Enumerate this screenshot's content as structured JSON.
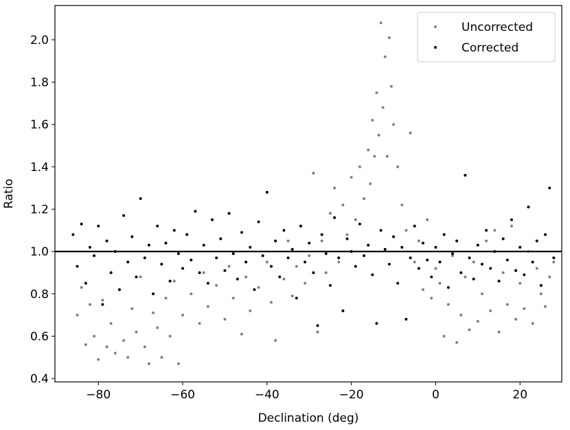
{
  "chart_data": {
    "type": "scatter",
    "xlabel": "Declination (deg)",
    "ylabel": "Ratio",
    "xlim": [
      -90.3,
      29.9
    ],
    "ylim": [
      0.384,
      2.162
    ],
    "xticks": [
      {
        "value": -80,
        "label": "−80"
      },
      {
        "value": -60,
        "label": "−60"
      },
      {
        "value": -40,
        "label": "−40"
      },
      {
        "value": -20,
        "label": "−20"
      },
      0,
      20
    ],
    "yticks": [
      0.4,
      0.6,
      0.8,
      {
        "value": 1.0,
        "label": "1.0"
      },
      1.2,
      1.4,
      1.6,
      1.8,
      {
        "value": 2.0,
        "label": "2.0"
      }
    ],
    "hline": 1,
    "legend": "upper right",
    "grid": false,
    "series": [
      {
        "name": "Uncorrected",
        "color": "#808080",
        "x": [
          -85,
          -84,
          -83,
          -82,
          -81,
          -80,
          -79,
          -78,
          -77,
          -76,
          -75,
          -74,
          -73,
          -72,
          -71,
          -70,
          -69,
          -68,
          -67,
          -66,
          -65,
          -64,
          -63,
          -62,
          -61,
          -60,
          -58,
          -56,
          -55,
          -54,
          -52,
          -50,
          -49,
          -48,
          -46,
          -45,
          -44,
          -42,
          -40,
          -39,
          -38,
          -36,
          -35,
          -34,
          -33,
          -32,
          -31,
          -30,
          -29,
          -28,
          -27,
          -26,
          -25,
          -24,
          -23,
          -22,
          -21,
          -20,
          -19,
          -18,
          -17,
          -16,
          -15.5,
          -15,
          -14.5,
          -14,
          -13.5,
          -13,
          -12.5,
          -12,
          -11.5,
          -11,
          -10.5,
          -10,
          -9,
          -8,
          -7,
          -6,
          -5,
          -4,
          -3,
          -2,
          -1,
          0,
          1,
          2,
          3,
          4,
          5,
          6,
          7,
          8,
          9,
          10,
          11,
          12,
          13,
          14,
          15,
          16,
          17,
          18,
          19,
          20,
          21,
          22,
          23,
          24,
          25,
          26,
          27,
          28
        ],
        "values": [
          0.7,
          0.83,
          0.56,
          0.75,
          0.6,
          0.49,
          0.77,
          0.55,
          0.66,
          0.52,
          0.82,
          0.58,
          0.5,
          0.73,
          0.62,
          0.88,
          0.55,
          0.47,
          0.71,
          0.64,
          0.5,
          0.78,
          0.6,
          0.86,
          0.47,
          0.7,
          0.8,
          0.66,
          0.9,
          0.74,
          0.84,
          0.68,
          0.93,
          0.78,
          0.61,
          0.88,
          0.72,
          0.83,
          0.95,
          0.76,
          0.58,
          0.87,
          1.05,
          0.79,
          0.93,
          1.12,
          0.85,
          0.98,
          1.37,
          0.62,
          1.05,
          0.9,
          1.18,
          1.3,
          0.95,
          1.22,
          1.08,
          1.35,
          1.15,
          1.4,
          1.25,
          1.48,
          1.32,
          1.62,
          1.45,
          1.75,
          1.55,
          2.08,
          1.68,
          1.92,
          1.45,
          2.01,
          1.78,
          1.6,
          1.4,
          1.22,
          1.1,
          1.56,
          0.95,
          1.05,
          0.82,
          1.15,
          0.78,
          0.92,
          0.85,
          0.6,
          0.75,
          0.98,
          0.57,
          0.7,
          0.88,
          0.63,
          0.95,
          0.67,
          0.8,
          1.05,
          0.72,
          1.1,
          0.62,
          0.9,
          0.75,
          1.12,
          0.68,
          0.85,
          0.73,
          1.0,
          0.66,
          0.92,
          0.8,
          0.74,
          0.88,
          0.95
        ]
      },
      {
        "name": "Corrected",
        "color": "#000000",
        "x": [
          -86,
          -85,
          -84,
          -83,
          -82,
          -81,
          -80,
          -79,
          -78,
          -77,
          -76,
          -75,
          -74,
          -73,
          -72,
          -71,
          -70,
          -69,
          -68,
          -67,
          -66,
          -65,
          -64,
          -63,
          -62,
          -61,
          -60,
          -59,
          -58,
          -57,
          -56,
          -55,
          -54,
          -53,
          -52,
          -51,
          -50,
          -49,
          -48,
          -47,
          -46,
          -45,
          -44,
          -43,
          -42,
          -41,
          -40,
          -39,
          -38,
          -37,
          -36,
          -35,
          -34,
          -33,
          -32,
          -31,
          -30,
          -29,
          -28,
          -27,
          -26,
          -25,
          -24,
          -23,
          -22,
          -21,
          -20,
          -19,
          -18,
          -17,
          -16,
          -15,
          -14,
          -13,
          -12,
          -11,
          -10,
          -9,
          -8,
          -7,
          -6,
          -5,
          -4,
          -3,
          -2,
          -1,
          0,
          1,
          2,
          3,
          4,
          5,
          6,
          7,
          8,
          9,
          10,
          11,
          12,
          13,
          14,
          15,
          16,
          17,
          18,
          19,
          20,
          21,
          22,
          23,
          24,
          25,
          26,
          27,
          28
        ],
        "values": [
          1.08,
          0.93,
          1.13,
          0.85,
          1.02,
          0.98,
          1.12,
          0.75,
          1.05,
          0.9,
          1.0,
          0.82,
          1.17,
          0.95,
          1.07,
          0.88,
          1.25,
          0.97,
          1.03,
          0.8,
          1.12,
          0.94,
          1.04,
          0.86,
          1.1,
          0.99,
          0.92,
          1.08,
          0.96,
          1.19,
          0.9,
          1.03,
          0.85,
          1.15,
          0.97,
          1.06,
          0.91,
          1.18,
          0.99,
          0.87,
          1.09,
          0.95,
          1.02,
          0.82,
          1.14,
          0.98,
          1.28,
          0.93,
          1.05,
          0.88,
          1.1,
          0.97,
          1.01,
          0.78,
          1.12,
          0.95,
          1.04,
          0.9,
          0.65,
          1.08,
          0.99,
          0.84,
          1.16,
          0.97,
          0.72,
          1.06,
          1.0,
          0.93,
          1.13,
          0.98,
          1.03,
          0.89,
          0.66,
          1.1,
          1.01,
          0.94,
          1.07,
          0.85,
          1.02,
          0.68,
          0.97,
          1.12,
          0.92,
          1.04,
          0.96,
          0.88,
          1.02,
          0.95,
          1.08,
          0.83,
          0.99,
          1.05,
          0.9,
          1.36,
          0.97,
          0.87,
          1.03,
          0.94,
          1.1,
          0.92,
          1.0,
          0.86,
          1.06,
          0.96,
          1.15,
          0.91,
          1.02,
          0.89,
          1.21,
          0.95,
          1.05,
          0.84,
          1.08,
          1.3,
          0.97
        ]
      }
    ]
  }
}
